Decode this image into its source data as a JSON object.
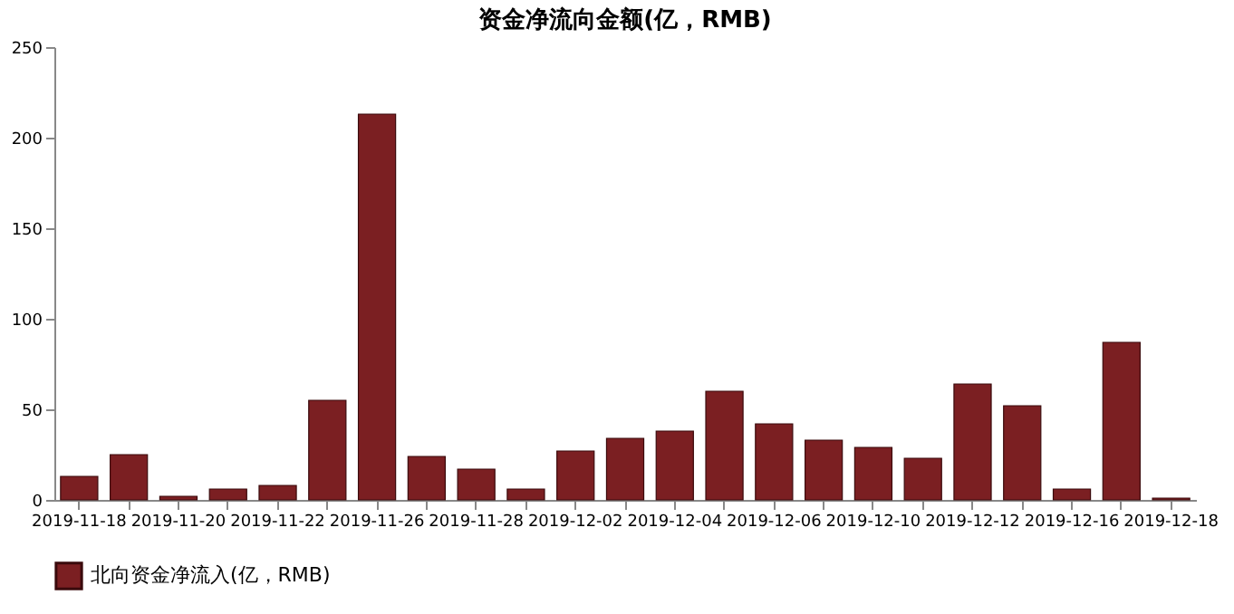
{
  "chart_data": {
    "type": "bar",
    "title": "资金净流向金额(亿，RMB)",
    "categories": [
      "2019-11-18",
      null,
      "2019-11-20",
      null,
      "2019-11-22",
      null,
      "2019-11-26",
      null,
      "2019-11-28",
      null,
      "2019-12-02",
      null,
      "2019-12-04",
      null,
      "2019-12-06",
      null,
      "2019-12-10",
      null,
      "2019-12-12",
      null,
      "2019-12-16",
      null,
      "2019-12-18"
    ],
    "series": [
      {
        "name": "北向资金净流入(亿，RMB)",
        "color": "#7b1f22",
        "values": [
          13,
          25,
          2,
          6,
          8,
          55,
          213,
          24,
          17,
          6,
          27,
          34,
          38,
          60,
          42,
          33,
          29,
          23,
          64,
          52,
          6,
          87,
          1
        ]
      }
    ],
    "ylim": [
      0,
      250
    ],
    "yticks": [
      0,
      50,
      100,
      150,
      200,
      250
    ],
    "grid": false,
    "legend": "bottom"
  }
}
